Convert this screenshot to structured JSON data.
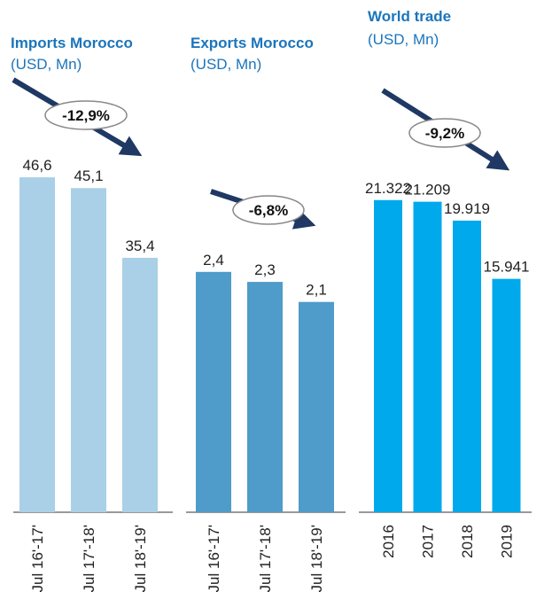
{
  "chart_data": [
    {
      "type": "bar",
      "title": "Imports Morocco",
      "subtitle": "(USD, Mn)",
      "annotation": "-12,9%",
      "categories": [
        "Jul 16'-17'",
        "Jul 17'-18'",
        "Jul 18'-19'"
      ],
      "values": [
        46.6,
        45.1,
        35.4
      ],
      "value_labels": [
        "46,6",
        "45,1",
        "35,4"
      ],
      "color": "#a9d0e6",
      "ylim": [
        0,
        50
      ]
    },
    {
      "type": "bar",
      "title": "Exports Morocco",
      "subtitle": "(USD, Mn)",
      "annotation": "-6,8%",
      "categories": [
        "Jul 16'-17'",
        "Jul 17'-18'",
        "Jul 18'-19'"
      ],
      "values": [
        2.4,
        2.3,
        2.1
      ],
      "value_labels": [
        "2,4",
        "2,3",
        "2,1"
      ],
      "color": "#4f9bc9",
      "ylim": [
        0,
        3
      ]
    },
    {
      "type": "bar",
      "title": "World trade",
      "subtitle": "(USD, Mn)",
      "annotation": "-9,2%",
      "categories": [
        "2016",
        "2017",
        "2018",
        "2019"
      ],
      "values": [
        21322,
        21209,
        19919,
        15941
      ],
      "value_labels": [
        "21.322",
        "21.209",
        "19.919",
        "15.941"
      ],
      "color": "#00a9ec",
      "ylim": [
        0,
        25000
      ]
    }
  ]
}
